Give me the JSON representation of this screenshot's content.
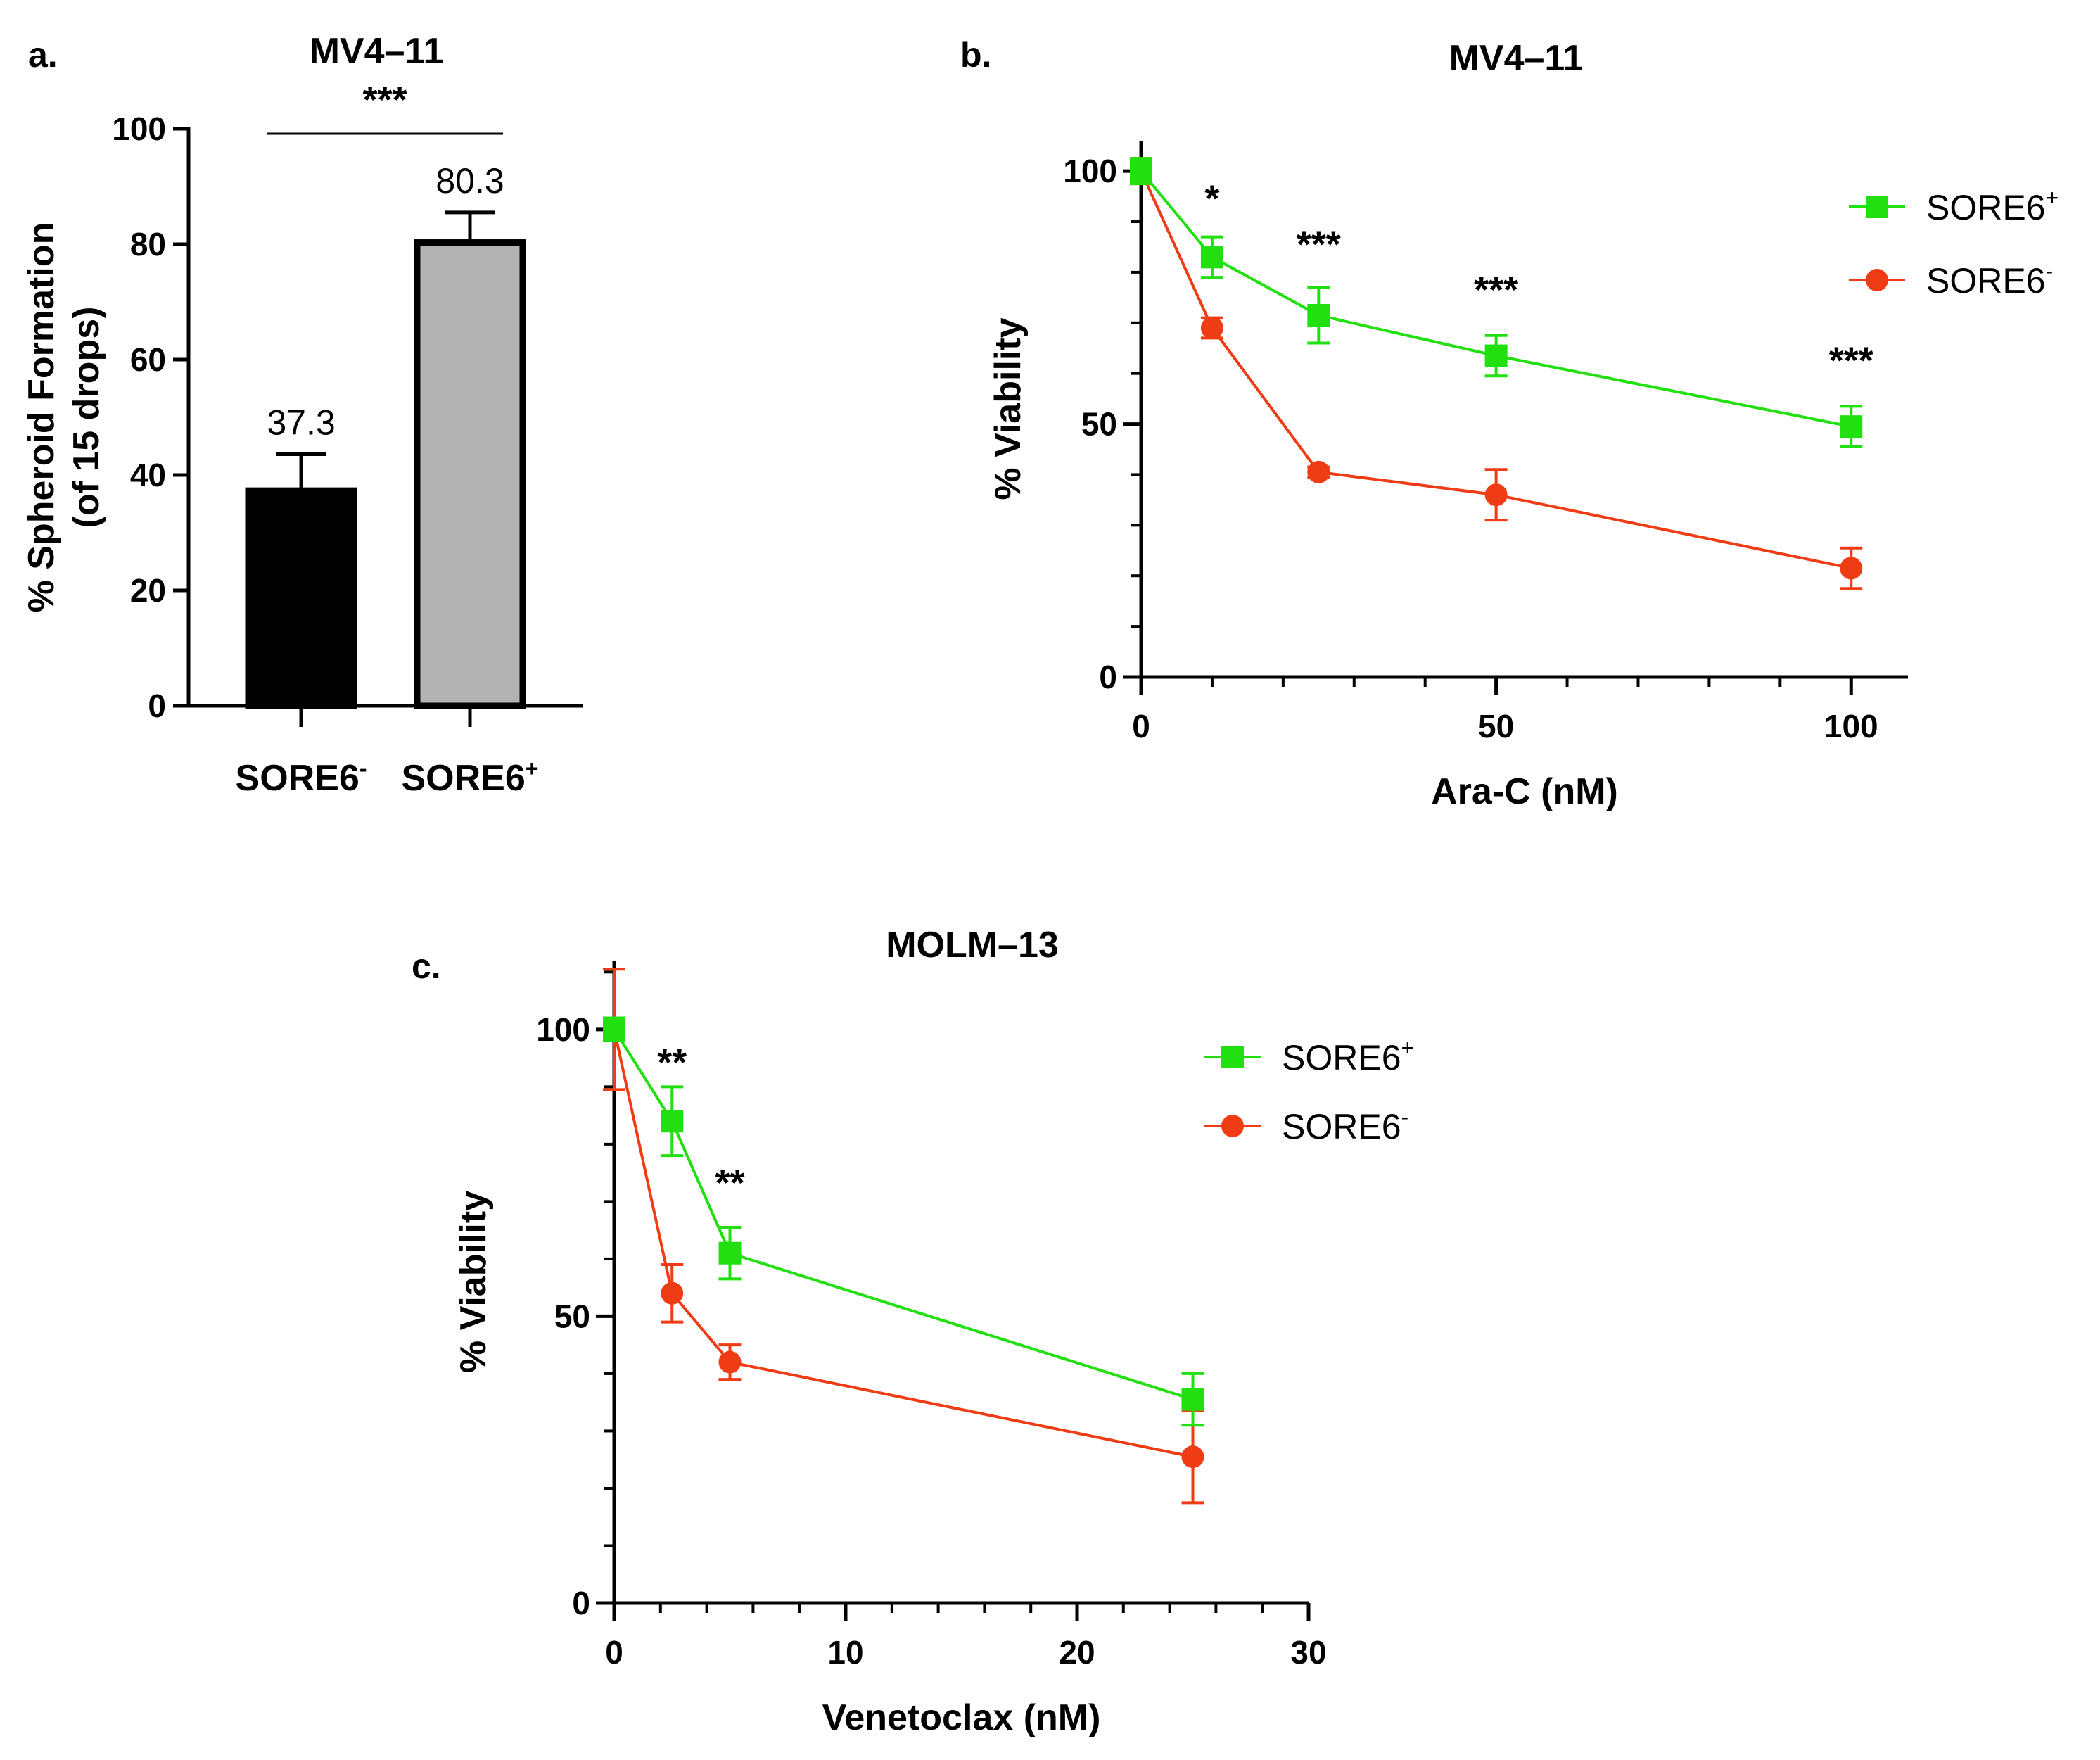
{
  "chart_data": [
    {
      "panel": "a.",
      "type": "bar",
      "title": "MV4–11",
      "ylabel": "% Spheroid Formation",
      "ylabel_line2": "(of 15 drops)",
      "ylim": [
        0,
        100
      ],
      "yticks": [
        0,
        20,
        40,
        60,
        80,
        100
      ],
      "categories": [
        {
          "base": "SORE6",
          "sup": "-"
        },
        {
          "base": "SORE6",
          "sup": "+"
        }
      ],
      "values": [
        37.3,
        80.3
      ],
      "errors": [
        6.3,
        5.2
      ],
      "value_labels": [
        "37.3",
        "80.3"
      ],
      "bar_colors": [
        "#000000",
        "#b3b3b3"
      ],
      "significance": {
        "label": "***",
        "between": [
          0,
          1
        ]
      }
    },
    {
      "panel": "b.",
      "type": "line",
      "title": "MV4–11",
      "xlabel": "Ara-C (nM)",
      "ylabel": "% Viability",
      "xlim": [
        0,
        108
      ],
      "ylim": [
        0,
        106
      ],
      "xticks": [
        0,
        50,
        100
      ],
      "yticks": [
        0,
        50,
        100
      ],
      "x_minor_step": 10,
      "y_minor_step": 10,
      "x": [
        0,
        10,
        25,
        50,
        100
      ],
      "series": [
        {
          "name": {
            "base": "SORE6",
            "sup": "+"
          },
          "marker": "square",
          "color": "#22e010",
          "values": [
            100,
            83,
            71.5,
            63.5,
            49.5
          ],
          "errors": [
            2.5,
            4,
            5.5,
            4,
            4
          ]
        },
        {
          "name": {
            "base": "SORE6",
            "sup": "-"
          },
          "marker": "circle",
          "color": "#f03c14",
          "values": [
            100,
            69,
            40.5,
            36,
            21.5
          ],
          "errors": [
            2.5,
            2,
            1,
            5,
            4
          ]
        }
      ],
      "annotations": [
        {
          "x": 10,
          "y": 92,
          "text": "*"
        },
        {
          "x": 25,
          "y": 83,
          "text": "***"
        },
        {
          "x": 50,
          "y": 74,
          "text": "***"
        },
        {
          "x": 100,
          "y": 60,
          "text": "***"
        }
      ],
      "legend": "top-right"
    },
    {
      "panel": "c.",
      "type": "line",
      "title": "MOLM–13",
      "xlabel": "Venetoclax (nM)",
      "ylabel": "% Viability",
      "xlim": [
        0,
        30
      ],
      "ylim": [
        0,
        112
      ],
      "xticks": [
        0,
        10,
        20,
        30
      ],
      "yticks": [
        0,
        50,
        100
      ],
      "x_minor_step": 2,
      "y_minor_step": 10,
      "x": [
        0,
        2.5,
        5,
        25
      ],
      "series": [
        {
          "name": {
            "base": "SORE6",
            "sup": "+"
          },
          "marker": "square",
          "color": "#22e010",
          "values": [
            100,
            84,
            61,
            35.5
          ],
          "errors": [
            2,
            6,
            4.5,
            4.5
          ]
        },
        {
          "name": {
            "base": "SORE6",
            "sup": "-"
          },
          "marker": "circle",
          "color": "#f03c14",
          "values": [
            100,
            54,
            42,
            25.5
          ],
          "errors": [
            10.5,
            5,
            3,
            8
          ]
        }
      ],
      "annotations": [
        {
          "x": 2.5,
          "y": 92,
          "text": "**"
        },
        {
          "x": 5,
          "y": 71,
          "text": "**"
        }
      ],
      "legend": "top-right"
    }
  ]
}
